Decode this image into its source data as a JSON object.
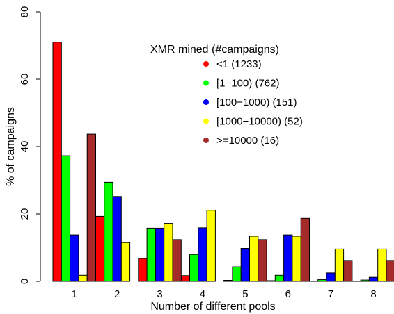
{
  "chart_data": {
    "type": "bar",
    "title": "",
    "xlabel": "Number of different pools",
    "ylabel": "% of campaigns",
    "ylim": [
      0,
      80
    ],
    "yticks": [
      "0",
      "20",
      "40",
      "60",
      "80"
    ],
    "categories": [
      "1",
      "2",
      "3",
      "4",
      "5",
      "6",
      "7",
      "8"
    ],
    "legend": {
      "title": "XMR mined (#campaigns)",
      "placement": "top-right"
    },
    "grid": false,
    "series": [
      {
        "name": "<1 (1233)",
        "color": "#ff0000",
        "values": [
          71,
          19.3,
          6.8,
          1.7,
          0.3,
          0.2,
          0.1,
          0.1
        ]
      },
      {
        "name": "[1−100) (762)",
        "color": "#00ff00",
        "values": [
          37.3,
          29.4,
          15.8,
          8,
          4.3,
          1.8,
          0.5,
          0.4
        ]
      },
      {
        "name": "[100−1000) (151)",
        "color": "#0000ff",
        "values": [
          13.8,
          25.2,
          15.8,
          15.9,
          9.8,
          13.8,
          2.5,
          1.2
        ]
      },
      {
        "name": "[1000−10000) (52)",
        "color": "#ffff00",
        "values": [
          1.8,
          11.5,
          17.2,
          21.1,
          13.4,
          13.4,
          9.6,
          9.6
        ]
      },
      {
        "name": ">=10000 (16)",
        "color": "#a52a2a",
        "values": [
          43.7,
          0,
          12.4,
          0,
          12.4,
          18.7,
          6.2,
          6.2
        ]
      }
    ]
  }
}
